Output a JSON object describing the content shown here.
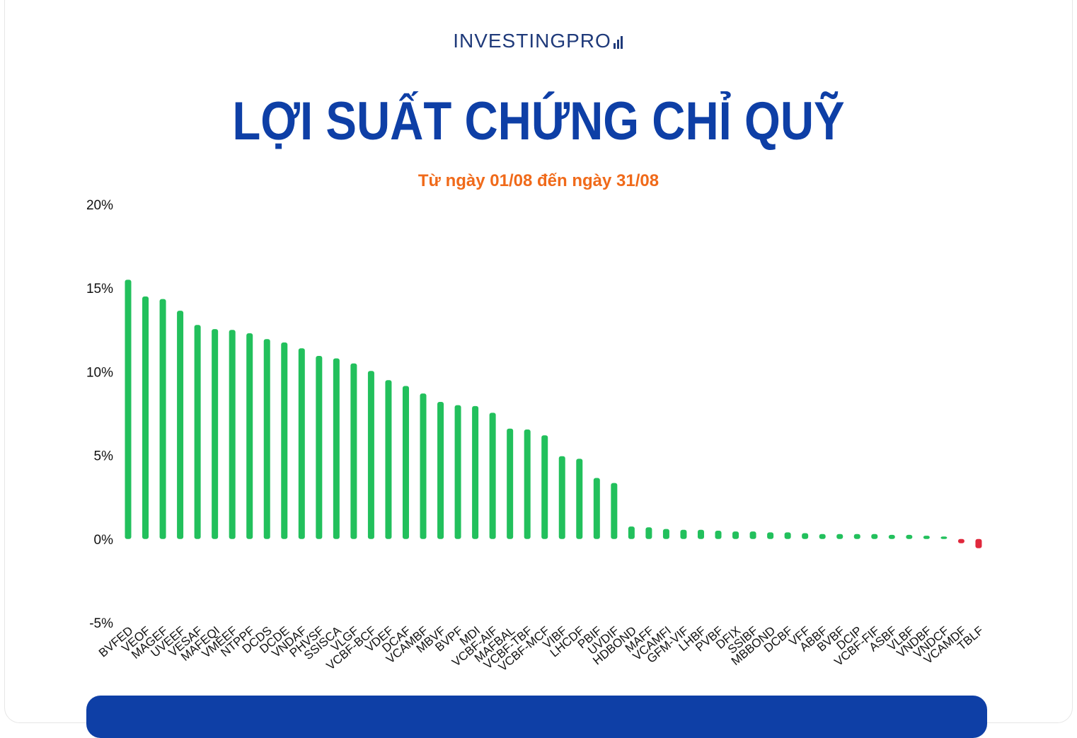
{
  "header": {
    "brand": "INVESTINGPRO",
    "title": "LỢI SUẤT CHỨNG CHỈ QUỸ",
    "subtitle": "Từ ngày 01/08 đến ngày 31/08"
  },
  "colors": {
    "positive": "#22c05c",
    "negative": "#e0283c",
    "title": "#0e3fa6",
    "subtitle": "#f06a1a",
    "brand": "#1f3a7a"
  },
  "chart_data": {
    "type": "bar",
    "title": "LỢI SUẤT CHỨNG CHỈ QUỸ",
    "subtitle": "Từ ngày 01/08 đến ngày 31/08",
    "xlabel": "",
    "ylabel": "",
    "ylim": [
      -5,
      20
    ],
    "yticks": [
      "20%",
      "15%",
      "10%",
      "5%",
      "0%",
      "-5%"
    ],
    "ytick_values": [
      20,
      15,
      10,
      5,
      0,
      -5
    ],
    "grid": false,
    "legend": "none",
    "categories": [
      "BVFED",
      "VEOF",
      "MAGEF",
      "UVEEF",
      "VESAF",
      "MAFEQI",
      "VMEEF",
      "NTPPF",
      "DCDS",
      "DCDE",
      "VNDAF",
      "PHVSF",
      "SSISCA",
      "VLGF",
      "VCBF-BCF",
      "VDEF",
      "DCAF",
      "VCAMBF",
      "MBVF",
      "BVPF",
      "MDI",
      "VCBF-AIF",
      "MAFBAL",
      "VCBF-TBF",
      "VCBF-MCF",
      "VIBF",
      "LHCDF",
      "PBIF",
      "UVDIF",
      "HDBOND",
      "MAFF",
      "VCAMFI",
      "GFM-VIF",
      "LHBF",
      "PVBF",
      "DFIX",
      "SSIBF",
      "MBBOND",
      "DCBF",
      "VFF",
      "ABBF",
      "BVBF",
      "DCIP",
      "VCBF-FIF",
      "ASBF",
      "VLBF",
      "VNDBF",
      "VNDCF",
      "VCAMDF",
      "TBLF"
    ],
    "values": [
      15.5,
      14.5,
      14.35,
      13.65,
      12.8,
      12.55,
      12.5,
      12.3,
      11.95,
      11.75,
      11.4,
      10.95,
      10.8,
      10.5,
      10.05,
      9.5,
      9.15,
      8.7,
      8.2,
      8.0,
      7.95,
      7.55,
      6.6,
      6.55,
      6.2,
      4.95,
      4.8,
      3.65,
      3.35,
      0.75,
      0.7,
      0.6,
      0.55,
      0.55,
      0.5,
      0.45,
      0.45,
      0.4,
      0.4,
      0.35,
      0.3,
      0.3,
      0.3,
      0.3,
      0.25,
      0.25,
      0.2,
      0.15,
      -0.25,
      -0.55
    ]
  }
}
